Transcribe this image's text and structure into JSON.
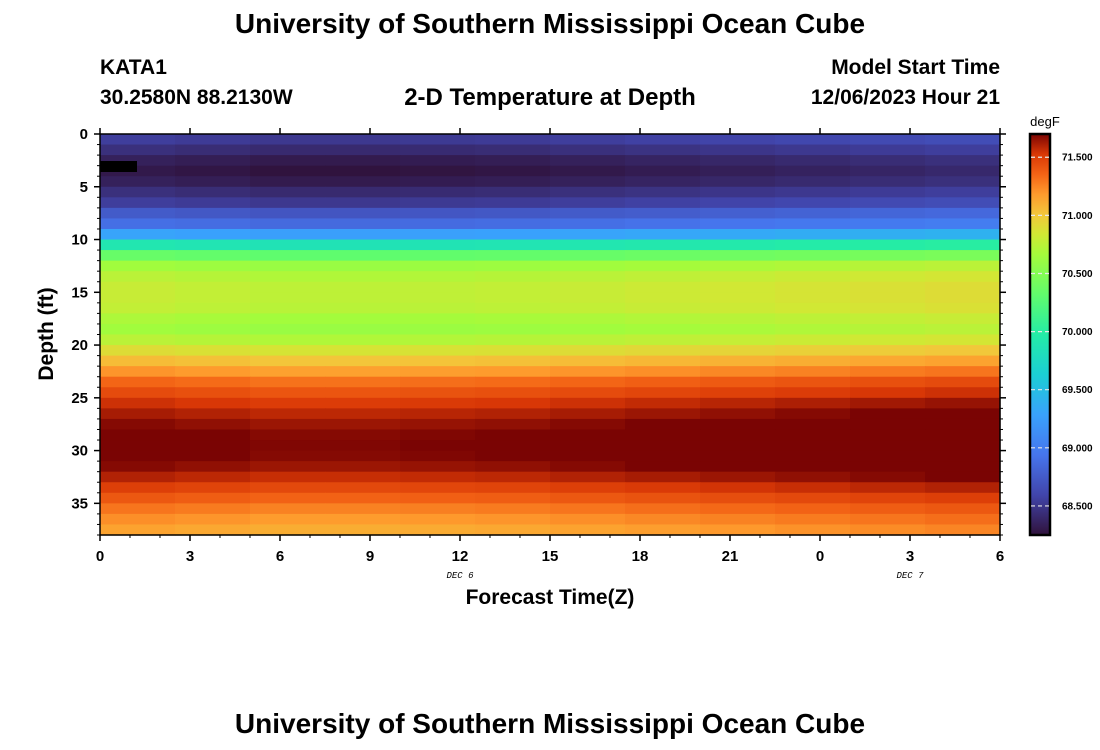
{
  "header": {
    "title": "University of Southern Mississippi Ocean Cube",
    "station_id": "KATA1",
    "station_coords": "30.2580N  88.2130W",
    "plot_title": "2-D Temperature at Depth",
    "start_label": "Model Start Time",
    "start_value": "12/06/2023 Hour 21"
  },
  "footer": {
    "title": "University of Southern Mississippi Ocean Cube"
  },
  "chart_data": {
    "type": "heatmap",
    "xlabel": "Forecast Time(Z)",
    "ylabel": "Depth (ft)",
    "x_hours": [
      21,
      24,
      27,
      30,
      33,
      36,
      39,
      42,
      45,
      48,
      51,
      54
    ],
    "x_tick_labels": [
      "0",
      "3",
      "6",
      "9",
      "12",
      "15",
      "18",
      "21",
      "0",
      "3",
      "6"
    ],
    "x_tick_hours": [
      0,
      3,
      6,
      9,
      12,
      15,
      18,
      21,
      24,
      27,
      30
    ],
    "date_labels": [
      {
        "text": "DEC 6",
        "hour": 12
      },
      {
        "text": "DEC 7",
        "hour": 27
      }
    ],
    "x_range_hours": [
      0,
      30
    ],
    "y_range": [
      0,
      38
    ],
    "y_ticks": [
      0,
      5,
      10,
      15,
      20,
      25,
      30,
      35
    ],
    "depth_rows": [
      0.5,
      1.5,
      2.5,
      3.5,
      4.5,
      5.5,
      6.5,
      7.5,
      8.5,
      9.5,
      10.5,
      11.5,
      12.5,
      13.5,
      14.5,
      15.5,
      16.5,
      17.5,
      18.5,
      19.5,
      20.5,
      21.5,
      22.5,
      23.5,
      24.5,
      25.5,
      26.5,
      27.5,
      28.5,
      29.5,
      30.5,
      31.5,
      32.5,
      33.5,
      34.5,
      35.5,
      36.5,
      37.5
    ],
    "temperature_profile_degF": [
      68.55,
      68.45,
      68.35,
      68.3,
      68.35,
      68.45,
      68.55,
      68.75,
      68.9,
      69.3,
      69.9,
      70.35,
      70.65,
      70.75,
      70.8,
      70.8,
      70.78,
      70.7,
      70.65,
      70.75,
      70.9,
      71.05,
      71.2,
      71.35,
      71.45,
      71.55,
      71.62,
      71.68,
      71.72,
      71.73,
      71.72,
      71.68,
      71.6,
      71.5,
      71.4,
      71.3,
      71.22,
      71.15
    ],
    "time_offset_degF": [
      0.0,
      -0.02,
      -0.04,
      -0.04,
      -0.03,
      -0.02,
      0.0,
      0.02,
      0.04,
      0.06,
      0.08,
      0.1
    ],
    "colorbar": {
      "label": "degF",
      "min": 68.25,
      "max": 71.7,
      "ticks": [
        71.5,
        71.0,
        70.5,
        70.0,
        69.5,
        69.0,
        68.5
      ],
      "tick_labels": [
        "71.500",
        "71.000",
        "70.500",
        "70.000",
        "69.500",
        "69.000",
        "68.500"
      ]
    }
  }
}
